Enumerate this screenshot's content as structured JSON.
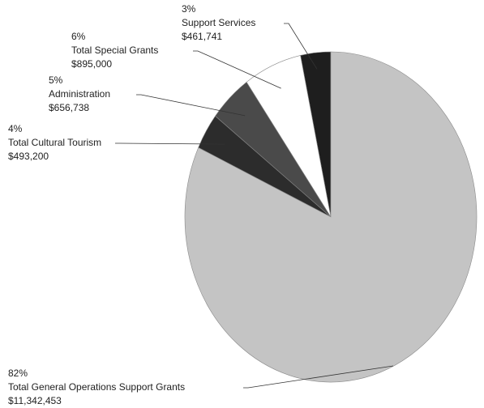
{
  "chart_data": {
    "type": "pie",
    "categories": [
      "Support Services",
      "Total Special Grants",
      "Administration",
      "Total Cultural Tourism",
      "Total General Operations Support Grants"
    ],
    "values": [
      461741,
      895000,
      656738,
      493200,
      11342453
    ],
    "value_labels": [
      "$461,741",
      "$895,000",
      "$656,738",
      "$493,200",
      "$11,342,453"
    ],
    "percent_labels": [
      "3%",
      "6%",
      "5%",
      "4%",
      "82%"
    ],
    "colors": [
      "#1e1e1e",
      "#ffffff",
      "#4a4a4a",
      "#2c2c2c",
      "#c4c4c4"
    ]
  }
}
